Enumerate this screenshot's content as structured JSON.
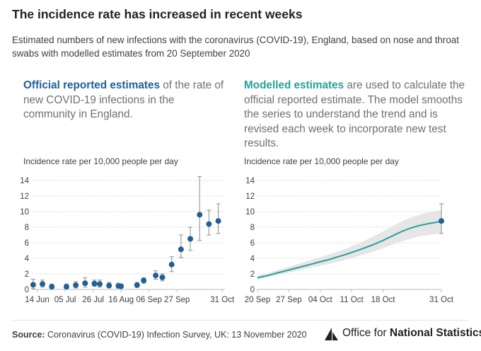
{
  "title": "The incidence rate has increased in recent weeks",
  "subtitle": "Estimated numbers of new infections with the coronavirus (COVID-19), England, based on nose and throat swabs with modelled estimates from 20 September 2020",
  "left_panel": {
    "highlight": "Official reported estimates",
    "text": " of the rate of new COVID-19 infections in the community in England."
  },
  "right_panel": {
    "highlight": "Modelled estimates",
    "text": " are used to calculate the official reported estimate. The model smooths the series to understand the trend and is revised each week to incorporate new test results."
  },
  "footer": {
    "source_label": "Source:",
    "source_text": " Coronavirus (COVID-19) Infection Survey, UK: 13 November 2020",
    "logo_text_prefix": "Office for ",
    "logo_text_bold": "National Statistics"
  },
  "colors": {
    "point": "#206095",
    "errorbar": "#9e9e9e",
    "model_line": "#27a0a0",
    "model_band": "#e6e6e6",
    "grid": "#d9d9d9"
  },
  "chart_data": [
    {
      "type": "scatter",
      "ylabel": "Incidence rate per 10,000 people per day",
      "ylim": [
        0,
        14
      ],
      "yticks": [
        0,
        2,
        4,
        6,
        8,
        10,
        12,
        14
      ],
      "xlim": [
        "2020-06-10",
        "2020-11-02"
      ],
      "xtick_labels": [
        {
          "date": "2020-06-14",
          "label": "14 Jun"
        },
        {
          "date": "2020-07-05",
          "label": "05 Jul"
        },
        {
          "date": "2020-07-26",
          "label": "26 Jul"
        },
        {
          "date": "2020-08-16",
          "label": "16 Aug"
        },
        {
          "date": "2020-09-06",
          "label": "06 Sep"
        },
        {
          "date": "2020-09-27",
          "label": "27 Sep"
        },
        {
          "date": "2020-10-31",
          "label": "31 Oct"
        }
      ],
      "points": [
        {
          "x": "2020-06-11",
          "y": 0.6,
          "lo": 0.1,
          "hi": 1.3
        },
        {
          "x": "2020-06-18",
          "y": 0.7,
          "lo": 0.3,
          "hi": 1.2
        },
        {
          "x": "2020-06-25",
          "y": 0.35,
          "lo": 0.1,
          "hi": 0.7
        },
        {
          "x": "2020-07-06",
          "y": 0.35,
          "lo": 0.1,
          "hi": 0.7
        },
        {
          "x": "2020-07-13",
          "y": 0.55,
          "lo": 0.2,
          "hi": 1.0
        },
        {
          "x": "2020-07-20",
          "y": 0.8,
          "lo": 0.3,
          "hi": 1.5
        },
        {
          "x": "2020-07-27",
          "y": 0.75,
          "lo": 0.4,
          "hi": 1.2
        },
        {
          "x": "2020-07-31",
          "y": 0.7,
          "lo": 0.3,
          "hi": 1.2
        },
        {
          "x": "2020-08-07",
          "y": 0.5,
          "lo": 0.2,
          "hi": 0.9
        },
        {
          "x": "2020-08-14",
          "y": 0.45,
          "lo": 0.2,
          "hi": 0.8
        },
        {
          "x": "2020-08-16",
          "y": 0.4,
          "lo": 0.2,
          "hi": 0.7
        },
        {
          "x": "2020-08-28",
          "y": 0.55,
          "lo": 0.3,
          "hi": 0.9
        },
        {
          "x": "2020-09-02",
          "y": 1.15,
          "lo": 0.8,
          "hi": 1.5
        },
        {
          "x": "2020-09-11",
          "y": 1.8,
          "lo": 1.3,
          "hi": 2.4
        },
        {
          "x": "2020-09-16",
          "y": 1.55,
          "lo": 1.1,
          "hi": 2.0
        },
        {
          "x": "2020-09-23",
          "y": 3.2,
          "lo": 2.3,
          "hi": 4.2
        },
        {
          "x": "2020-09-30",
          "y": 5.15,
          "lo": 4.1,
          "hi": 7.0
        },
        {
          "x": "2020-10-07",
          "y": 6.5,
          "lo": 5.0,
          "hi": 8.0
        },
        {
          "x": "2020-10-14",
          "y": 9.6,
          "lo": 6.3,
          "hi": 14.5
        },
        {
          "x": "2020-10-21",
          "y": 8.4,
          "lo": 7.0,
          "hi": 10.2
        },
        {
          "x": "2020-10-28",
          "y": 8.8,
          "lo": 7.2,
          "hi": 11.0
        }
      ]
    },
    {
      "type": "line",
      "ylabel": "Incidence rate per 10,000 people per day",
      "ylim": [
        0,
        14
      ],
      "yticks": [
        0,
        2,
        4,
        6,
        8,
        10,
        12,
        14
      ],
      "xlim": [
        "2020-09-20",
        "2020-10-31"
      ],
      "xtick_labels": [
        {
          "date": "2020-09-20",
          "label": "20 Sep"
        },
        {
          "date": "2020-09-27",
          "label": "27 Sep"
        },
        {
          "date": "2020-10-04",
          "label": "04 Oct"
        },
        {
          "date": "2020-10-11",
          "label": "11 Oct"
        },
        {
          "date": "2020-10-18",
          "label": "18 Oct"
        },
        {
          "date": "2020-10-31",
          "label": "31 Oct"
        }
      ],
      "series": [
        {
          "x": [
            "2020-09-20",
            "2020-09-22",
            "2020-09-24",
            "2020-09-26",
            "2020-09-28",
            "2020-09-30",
            "2020-10-02",
            "2020-10-04",
            "2020-10-06",
            "2020-10-08",
            "2020-10-10",
            "2020-10-12",
            "2020-10-14",
            "2020-10-16",
            "2020-10-18",
            "2020-10-20",
            "2020-10-22",
            "2020-10-24",
            "2020-10-26",
            "2020-10-28",
            "2020-10-31"
          ],
          "y": [
            1.5,
            1.75,
            2.05,
            2.35,
            2.65,
            2.95,
            3.25,
            3.55,
            3.85,
            4.2,
            4.55,
            4.95,
            5.35,
            5.8,
            6.3,
            6.85,
            7.4,
            7.85,
            8.2,
            8.45,
            8.75
          ],
          "lo": [
            1.3,
            1.55,
            1.8,
            2.05,
            2.3,
            2.55,
            2.8,
            3.05,
            3.3,
            3.55,
            3.85,
            4.2,
            4.55,
            4.9,
            5.3,
            5.75,
            6.15,
            6.5,
            6.8,
            7.0,
            7.2
          ],
          "hi": [
            1.75,
            2.05,
            2.4,
            2.75,
            3.1,
            3.45,
            3.8,
            4.15,
            4.5,
            4.9,
            5.3,
            5.8,
            6.3,
            6.85,
            7.45,
            8.1,
            8.7,
            9.2,
            9.6,
            9.9,
            10.2
          ]
        }
      ],
      "end_point": {
        "x": "2020-10-31",
        "y": 8.8,
        "lo": 7.2,
        "hi": 11.0
      }
    }
  ]
}
